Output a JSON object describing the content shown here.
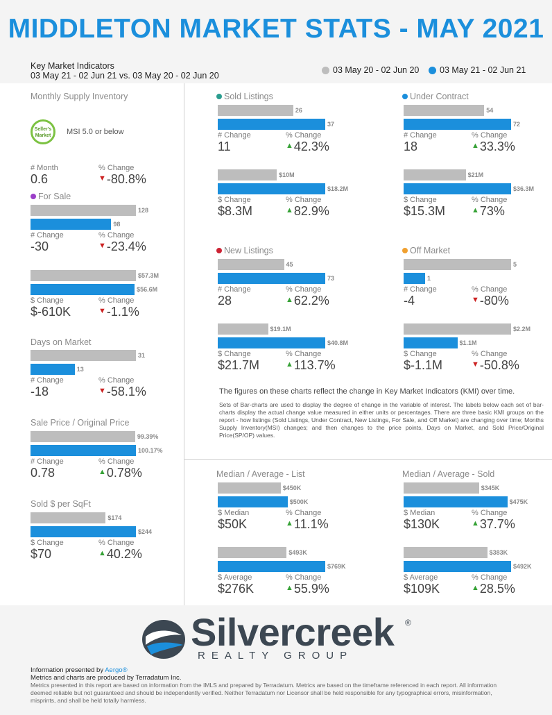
{
  "header": {
    "title": "MIDDLETON MARKET STATS - MAY 2021",
    "kmi_label": "Key Market Indicators",
    "date_range": "03 May 21 - 02 Jun 21 vs. 03 May 20 - 02 Jun 20",
    "legend_prev": "03 May 20 - 02 Jun 20",
    "legend_curr": "03 May 21 - 02 Jun 21"
  },
  "colors": {
    "prev": "#bdbdbd",
    "curr": "#1b8fdc",
    "up": "#35a135",
    "down": "#cc2222"
  },
  "msi": {
    "title": "Monthly Supply Inventory",
    "badge": "Seller's Market",
    "badge_line1": "Seller's",
    "badge_line2": "Market",
    "note": "MSI 5.0 or below",
    "label1": "# Month",
    "value1": "0.6",
    "label2": "% Change",
    "value2": "-80.8%",
    "dir2": "down"
  },
  "for_sale": {
    "title": "For Sale",
    "count": {
      "prev": 128,
      "curr": 98,
      "prev_label": "128",
      "curr_label": "98",
      "label1": "# Change",
      "value1": "-30",
      "label2": "% Change",
      "value2": "-23.4%",
      "dir2": "down"
    },
    "volume": {
      "prev": 57.3,
      "curr": 56.6,
      "prev_label": "$57.3M",
      "curr_label": "$56.6M",
      "label1": "$ Change",
      "value1": "$-610K",
      "label2": "% Change",
      "value2": "-1.1%",
      "dir2": "down"
    }
  },
  "days_on_market": {
    "title": "Days on Market",
    "prev": 31,
    "curr": 13,
    "prev_label": "31",
    "curr_label": "13",
    "label1": "# Change",
    "value1": "-18",
    "label2": "% Change",
    "value2": "-58.1%",
    "dir2": "down"
  },
  "sale_price_original": {
    "title": "Sale Price / Original Price",
    "prev": 99.39,
    "curr": 100.17,
    "prev_label": "99.39%",
    "curr_label": "100.17%",
    "label1": "# Change",
    "value1": "0.78",
    "label2": "% Change",
    "value2": "0.78%",
    "dir2": "up"
  },
  "sold_per_sqft": {
    "title": "Sold $ per SqFt",
    "prev": 174,
    "curr": 244,
    "prev_label": "$174",
    "curr_label": "$244",
    "label1": "$ Change",
    "value1": "$70",
    "label2": "% Change",
    "value2": "40.2%",
    "dir2": "up"
  },
  "sold_listings": {
    "title": "Sold Listings",
    "dot_color": "#2a9d8f",
    "count": {
      "prev": 26,
      "curr": 37,
      "prev_label": "26",
      "curr_label": "37",
      "label1": "# Change",
      "value1": "11",
      "label2": "% Change",
      "value2": "42.3%",
      "dir2": "up"
    },
    "volume": {
      "prev": 10,
      "curr": 18.2,
      "prev_label": "$10M",
      "curr_label": "$18.2M",
      "label1": "$ Change",
      "value1": "$8.3M",
      "label2": "% Change",
      "value2": "82.9%",
      "dir2": "up"
    }
  },
  "under_contract": {
    "title": "Under Contract",
    "dot_color": "#1b8fdc",
    "count": {
      "prev": 54,
      "curr": 72,
      "prev_label": "54",
      "curr_label": "72",
      "label1": "# Change",
      "value1": "18",
      "label2": "% Change",
      "value2": "33.3%",
      "dir2": "up"
    },
    "volume": {
      "prev": 21,
      "curr": 36.3,
      "prev_label": "$21M",
      "curr_label": "$36.3M",
      "label1": "$ Change",
      "value1": "$15.3M",
      "label2": "% Change",
      "value2": "73%",
      "dir2": "up"
    }
  },
  "new_listings": {
    "title": "New Listings",
    "dot_color": "#cc2233",
    "count": {
      "prev": 45,
      "curr": 73,
      "prev_label": "45",
      "curr_label": "73",
      "label1": "# Change",
      "value1": "28",
      "label2": "% Change",
      "value2": "62.2%",
      "dir2": "up"
    },
    "volume": {
      "prev": 19.1,
      "curr": 40.8,
      "prev_label": "$19.1M",
      "curr_label": "$40.8M",
      "label1": "$ Change",
      "value1": "$21.7M",
      "label2": "% Change",
      "value2": "113.7%",
      "dir2": "up"
    }
  },
  "off_market": {
    "title": "Off Market",
    "dot_color": "#f0a030",
    "count": {
      "prev": 5,
      "curr": 1,
      "prev_label": "5",
      "curr_label": "1",
      "label1": "# Change",
      "value1": "-4",
      "label2": "% Change",
      "value2": "-80%",
      "dir2": "down"
    },
    "volume": {
      "prev": 2.2,
      "curr": 1.1,
      "prev_label": "$2.2M",
      "curr_label": "$1.1M",
      "label1": "$ Change",
      "value1": "$-1.1M",
      "label2": "% Change",
      "value2": "-50.8%",
      "dir2": "down"
    }
  },
  "notes": {
    "headline": "The figures on these charts reflect the change in Key Market Indicators (KMI) over time.",
    "body": "Sets of Bar-charts are used to display the degree of change in the variable of interest. The labels below each set of bar-charts display the actual change value measured in either units or percentages. There are three basic KMI groups on the report - how listings (Sold Listings, Under Contract, New Listings, For Sale, and Off Market) are changing over time; Months Supply Inventory(MSI) changes; and then changes to the price points, Days on Market, and Sold Price/Original Price(SP/OP) values."
  },
  "median_list": {
    "title": "Median / Average - List",
    "median": {
      "prev": 450,
      "curr": 500,
      "prev_label": "$450K",
      "curr_label": "$500K",
      "label1": "$ Median",
      "value1": "$50K",
      "label2": "% Change",
      "value2": "11.1%",
      "dir2": "up"
    },
    "average": {
      "prev": 493,
      "curr": 769,
      "prev_label": "$493K",
      "curr_label": "$769K",
      "label1": "$ Average",
      "value1": "$276K",
      "label2": "% Change",
      "value2": "55.9%",
      "dir2": "up"
    }
  },
  "median_sold": {
    "title": "Median / Average - Sold",
    "median": {
      "prev": 345,
      "curr": 475,
      "prev_label": "$345K",
      "curr_label": "$475K",
      "label1": "$ Median",
      "value1": "$130K",
      "label2": "% Change",
      "value2": "37.7%",
      "dir2": "up"
    },
    "average": {
      "prev": 383,
      "curr": 492,
      "prev_label": "$383K",
      "curr_label": "$492K",
      "label1": "$ Average",
      "value1": "$109K",
      "label2": "% Change",
      "value2": "28.5%",
      "dir2": "up"
    }
  },
  "footer": {
    "logo_word": "Silvercreek",
    "logo_sub": "REALTY GROUP",
    "logo_reg": "®",
    "presented_prefix": "Information presented by ",
    "presented_link": "Aergo®",
    "produced": "Metrics and charts are produced by Terradatum Inc.",
    "disclaimer": "Metrics presented in this report are based on information from the IMLS and prepared by Terradatum. Metrics are based on the timeframe referenced in each report. All information deemed reliable but not guaranteed and should be independently verified. Neither Terradatum nor Licensor shall be held responsible for any typographical errors, misinformation, misprints, and shall be held totally harmless."
  }
}
